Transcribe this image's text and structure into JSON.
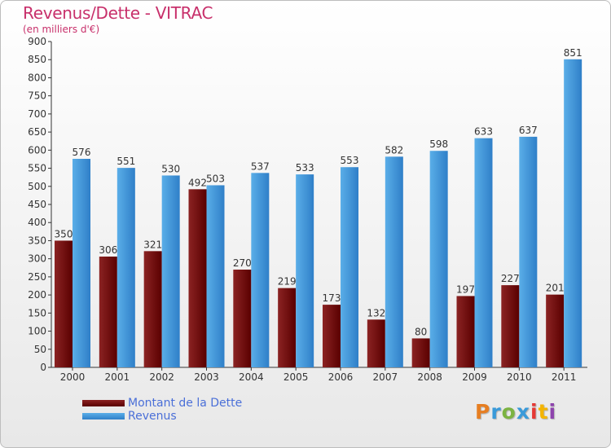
{
  "header": {
    "title": "Revenus/Dette - VITRAC",
    "subtitle": "(en milliers d'€)"
  },
  "legend": {
    "debt_label": "Montant de la Dette",
    "revenue_label": "Revenus"
  },
  "brand": {
    "letters": [
      "P",
      "r",
      "o",
      "x",
      "i",
      "t",
      "i"
    ],
    "colors": [
      "#e67e22",
      "#3a9ad9",
      "#7cb342",
      "#3a9ad9",
      "#e53935",
      "#f4b400",
      "#8e44ad"
    ]
  },
  "colors": {
    "debt_dark": "#5a0000",
    "debt_light": "#8b2323",
    "revenue_dark": "#2f7fc8",
    "revenue_light": "#5aaee8",
    "title": "#c8306b"
  },
  "chart_data": {
    "type": "bar",
    "title": "Revenus/Dette - VITRAC",
    "subtitle": "(en milliers d'€)",
    "categories": [
      "2000",
      "2001",
      "2002",
      "2003",
      "2004",
      "2005",
      "2006",
      "2007",
      "2008",
      "2009",
      "2010",
      "2011"
    ],
    "series": [
      {
        "name": "Montant de la Dette",
        "values": [
          350,
          306,
          321,
          492,
          270,
          219,
          173,
          132,
          80,
          197,
          227,
          201
        ]
      },
      {
        "name": "Revenus",
        "values": [
          576,
          551,
          530,
          503,
          537,
          533,
          553,
          582,
          598,
          633,
          637,
          851
        ]
      }
    ],
    "ylim": [
      0,
      900
    ],
    "ytick_step": 50,
    "grid": false,
    "legend_position": "bottom-left"
  }
}
